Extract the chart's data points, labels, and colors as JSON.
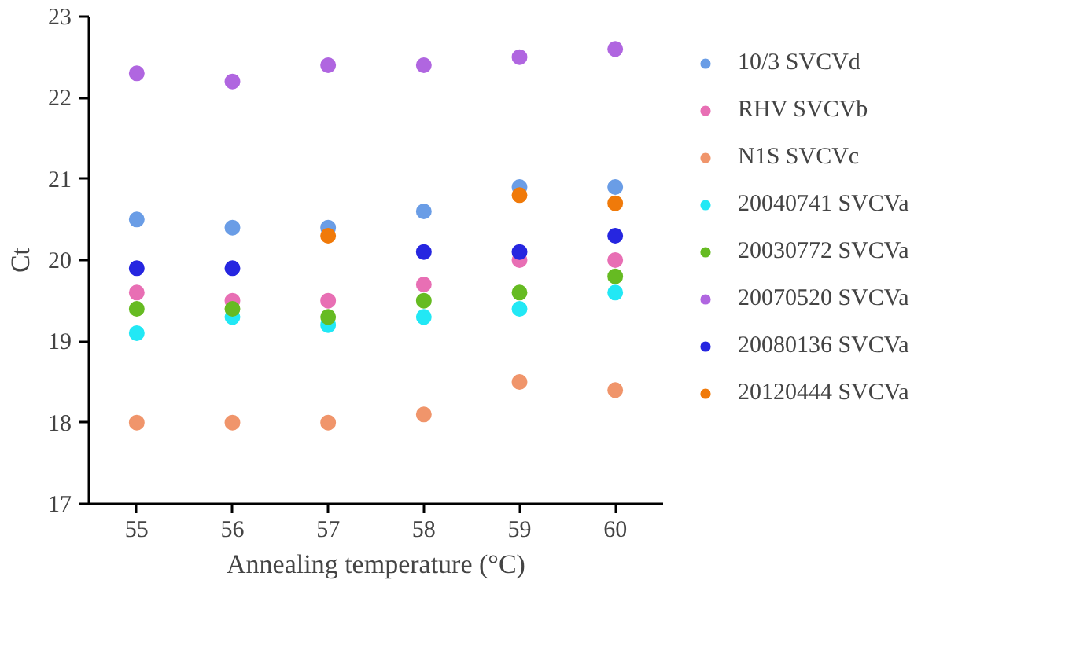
{
  "chart_data": {
    "type": "scatter",
    "xlabel": "Annealing temperature (°C)",
    "ylabel": "Ct",
    "x": [
      55,
      56,
      57,
      58,
      59,
      60
    ],
    "xlim": [
      54.5,
      60.5
    ],
    "xticks": [
      55,
      56,
      57,
      58,
      59,
      60
    ],
    "ylim": [
      17,
      23
    ],
    "yticks": [
      17,
      18,
      19,
      20,
      21,
      22,
      23
    ],
    "grid": false,
    "legend": "right",
    "marker": "circle",
    "series": [
      {
        "name": "10/3 SVCVd",
        "color": "#6a9de6",
        "values": [
          20.5,
          20.4,
          20.4,
          20.6,
          20.9,
          20.9
        ]
      },
      {
        "name": "RHV SVCVb",
        "color": "#e86fb4",
        "values": [
          19.6,
          19.5,
          19.5,
          19.7,
          20.0,
          20.0
        ]
      },
      {
        "name": "N1S SVCVc",
        "color": "#f0956b",
        "values": [
          18.0,
          18.0,
          18.0,
          18.1,
          18.5,
          18.4
        ]
      },
      {
        "name": "20040741 SVCVa",
        "color": "#22e8f5",
        "values": [
          19.1,
          19.3,
          19.2,
          19.3,
          19.4,
          19.6
        ]
      },
      {
        "name": "20030772 SVCVa",
        "color": "#66bb22",
        "values": [
          19.4,
          19.4,
          19.3,
          19.5,
          19.6,
          19.8
        ]
      },
      {
        "name": "20070520 SVCVa",
        "color": "#b066e0",
        "values": [
          22.3,
          22.2,
          22.4,
          22.4,
          22.5,
          22.6
        ]
      },
      {
        "name": "20080136 SVCVa",
        "color": "#2626e0",
        "values": [
          19.9,
          19.9,
          null,
          20.1,
          20.1,
          20.3
        ]
      },
      {
        "name": "20120444 SVCVa",
        "color": "#f07a0a",
        "values": [
          null,
          null,
          20.3,
          null,
          20.8,
          20.7
        ]
      }
    ]
  }
}
